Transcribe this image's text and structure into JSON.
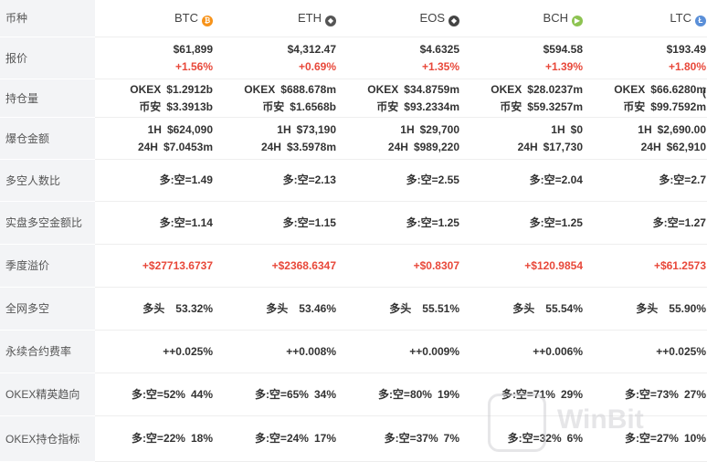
{
  "header": {
    "label": "币种",
    "coins": [
      {
        "name": "BTC",
        "icon": "btc-icon",
        "icon_char": "₿",
        "color": "#f7931a"
      },
      {
        "name": "ETH",
        "icon": "eth-icon",
        "icon_char": "◆",
        "color": "#555555"
      },
      {
        "name": "EOS",
        "icon": "eos-icon",
        "icon_char": "◆",
        "color": "#444444"
      },
      {
        "name": "BCH",
        "icon": "bch-icon",
        "icon_char": "▶",
        "color": "#8dc351"
      },
      {
        "name": "LTC",
        "icon": "ltc-icon",
        "icon_char": "Ł",
        "color": "#5a8fd8"
      }
    ]
  },
  "rows": {
    "price": {
      "label": "报价",
      "items": [
        {
          "value": "$61,899",
          "change": "+1.56%"
        },
        {
          "value": "$4,312.47",
          "change": "+0.69%"
        },
        {
          "value": "$4.6325",
          "change": "+1.35%"
        },
        {
          "value": "$594.58",
          "change": "+1.39%"
        },
        {
          "value": "$193.49",
          "change": "+1.80%"
        }
      ]
    },
    "position": {
      "label": "持仓量",
      "items": [
        {
          "a_k": "OKEX",
          "a_v": "$1.2912b",
          "b_k": "币安",
          "b_v": "$3.3913b"
        },
        {
          "a_k": "OKEX",
          "a_v": "$688.678m",
          "b_k": "币安",
          "b_v": "$1.6568b"
        },
        {
          "a_k": "OKEX",
          "a_v": "$34.8759m",
          "b_k": "币安",
          "b_v": "$93.2334m"
        },
        {
          "a_k": "OKEX",
          "a_v": "$28.0237m",
          "b_k": "币安",
          "b_v": "$59.3257m"
        },
        {
          "a_k": "OKEX",
          "a_v": "$66.6280m",
          "b_k": "币安",
          "b_v": "$99.7592m"
        }
      ]
    },
    "liquidation": {
      "label": "爆仓金额",
      "items": [
        {
          "a_k": "1H",
          "a_v": "$624,090",
          "b_k": "24H",
          "b_v": "$7.0453m"
        },
        {
          "a_k": "1H",
          "a_v": "$73,190",
          "b_k": "24H",
          "b_v": "$3.5978m"
        },
        {
          "a_k": "1H",
          "a_v": "$29,700",
          "b_k": "24H",
          "b_v": "$989,220"
        },
        {
          "a_k": "1H",
          "a_v": "$0",
          "b_k": "24H",
          "b_v": "$17,730"
        },
        {
          "a_k": "1H",
          "a_v": "$2,690.00",
          "b_k": "24H",
          "b_v": "$62,910"
        }
      ]
    },
    "ls_people": {
      "label": "多空人数比",
      "items": [
        "多:空=1.49",
        "多:空=2.13",
        "多:空=2.55",
        "多:空=2.04",
        "多:空=2.7"
      ]
    },
    "ls_amount": {
      "label": "实盘多空金额比",
      "items": [
        "多:空=1.14",
        "多:空=1.15",
        "多:空=1.25",
        "多:空=1.25",
        "多:空=1.27"
      ]
    },
    "premium": {
      "label": "季度溢价",
      "items": [
        "+$27713.6737",
        "+$2368.6347",
        "+$0.8307",
        "+$120.9854",
        "+$61.2573"
      ]
    },
    "net": {
      "label": "全网多空",
      "items": [
        {
          "k": "多头",
          "v": "53.32%"
        },
        {
          "k": "多头",
          "v": "53.46%"
        },
        {
          "k": "多头",
          "v": "55.51%"
        },
        {
          "k": "多头",
          "v": "55.54%"
        },
        {
          "k": "多头",
          "v": "55.90%"
        }
      ]
    },
    "funding": {
      "label": "永续合约费率",
      "items": [
        "++0.025%",
        "++0.008%",
        "++0.009%",
        "++0.006%",
        "++0.025%"
      ]
    },
    "elite": {
      "label": "OKEX精英趋向",
      "items": [
        {
          "k": "多:空=52%",
          "v": "44%"
        },
        {
          "k": "多:空=65%",
          "v": "34%"
        },
        {
          "k": "多:空=80%",
          "v": "19%"
        },
        {
          "k": "多:空=71%",
          "v": "29%"
        },
        {
          "k": "多:空=73%",
          "v": "27%"
        }
      ]
    },
    "pos_index": {
      "label": "OKEX持仓指标",
      "items": [
        {
          "k": "多:空=22%",
          "v": "18%"
        },
        {
          "k": "多:空=24%",
          "v": "17%"
        },
        {
          "k": "多:空=37%",
          "v": "7%"
        },
        {
          "k": "多:空=32%",
          "v": "6%"
        },
        {
          "k": "多:空=27%",
          "v": "10%"
        }
      ]
    }
  },
  "overflow_char": "(",
  "watermark": "WinBit",
  "colors": {
    "positive": "#e8483a",
    "label_bg": "#f3f4f6"
  }
}
